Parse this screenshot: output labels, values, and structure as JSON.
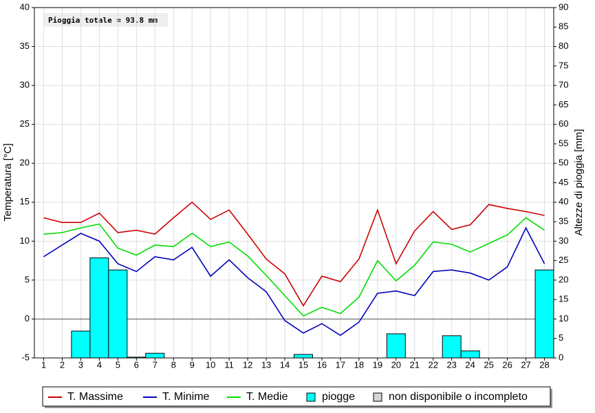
{
  "chart_data": {
    "type": "combo",
    "annotation": "Pioggia totale = 93.8 mm",
    "y_label": "Temperatura [°C]",
    "y2_label": "Altezze di pioggia [mm]",
    "categories": [
      "1",
      "2",
      "3",
      "4",
      "5",
      "6",
      "7",
      "8",
      "9",
      "10",
      "11",
      "12",
      "13",
      "14",
      "15",
      "16",
      "17",
      "18",
      "19",
      "20",
      "21",
      "22",
      "23",
      "24",
      "25",
      "26",
      "27",
      "28"
    ],
    "ylim": [
      -5,
      40
    ],
    "yticks": [
      -5,
      0,
      5,
      10,
      15,
      20,
      25,
      30,
      35,
      40
    ],
    "y2lim": [
      0,
      90
    ],
    "y2ticks": [
      0,
      5,
      10,
      15,
      20,
      25,
      30,
      35,
      40,
      45,
      50,
      55,
      60,
      65,
      70,
      75,
      80,
      85,
      90
    ],
    "grid": true,
    "series": [
      {
        "name": "T. Massime",
        "type": "line",
        "color": "#cc0000",
        "values": [
          13.0,
          12.4,
          12.4,
          13.6,
          11.1,
          11.4,
          10.9,
          13.0,
          15.0,
          12.8,
          14.0,
          10.9,
          7.7,
          5.8,
          1.7,
          5.5,
          4.8,
          7.7,
          14.0,
          7.1,
          11.3,
          13.8,
          11.5,
          12.1,
          14.7,
          14.2,
          13.8,
          13.3
        ]
      },
      {
        "name": "T. Minime",
        "type": "line",
        "color": "#0000bb",
        "values": [
          8.0,
          9.5,
          11.0,
          10.0,
          7.1,
          6.1,
          8.0,
          7.6,
          9.2,
          5.5,
          7.6,
          5.3,
          3.5,
          -0.2,
          -1.8,
          -0.6,
          -2.1,
          -0.4,
          3.3,
          3.6,
          3.0,
          6.1,
          6.3,
          5.9,
          5.0,
          6.7,
          11.7,
          7.1
        ]
      },
      {
        "name": "T. Medie",
        "type": "line",
        "color": "#00dd00",
        "values": [
          10.9,
          11.1,
          11.7,
          12.2,
          9.1,
          8.2,
          9.5,
          9.3,
          11.0,
          9.3,
          9.9,
          8.1,
          5.6,
          3.0,
          0.4,
          1.5,
          0.7,
          2.8,
          7.5,
          4.9,
          6.9,
          9.9,
          9.6,
          8.6,
          9.7,
          10.8,
          13.0,
          11.4
        ]
      },
      {
        "name": "piogge",
        "type": "bar",
        "axis": "y2",
        "color": "#00ffff",
        "values": [
          0,
          0,
          6.9,
          25.7,
          22.6,
          0.2,
          1.2,
          0,
          0,
          0,
          0,
          0,
          0,
          0,
          0.9,
          0,
          0,
          0,
          0,
          6.2,
          0,
          0,
          5.7,
          1.8,
          0,
          0,
          0,
          22.6
        ]
      }
    ],
    "legend_extra": [
      {
        "name": "non disponibile o incompleto",
        "color": "#d4d4d4"
      }
    ]
  }
}
